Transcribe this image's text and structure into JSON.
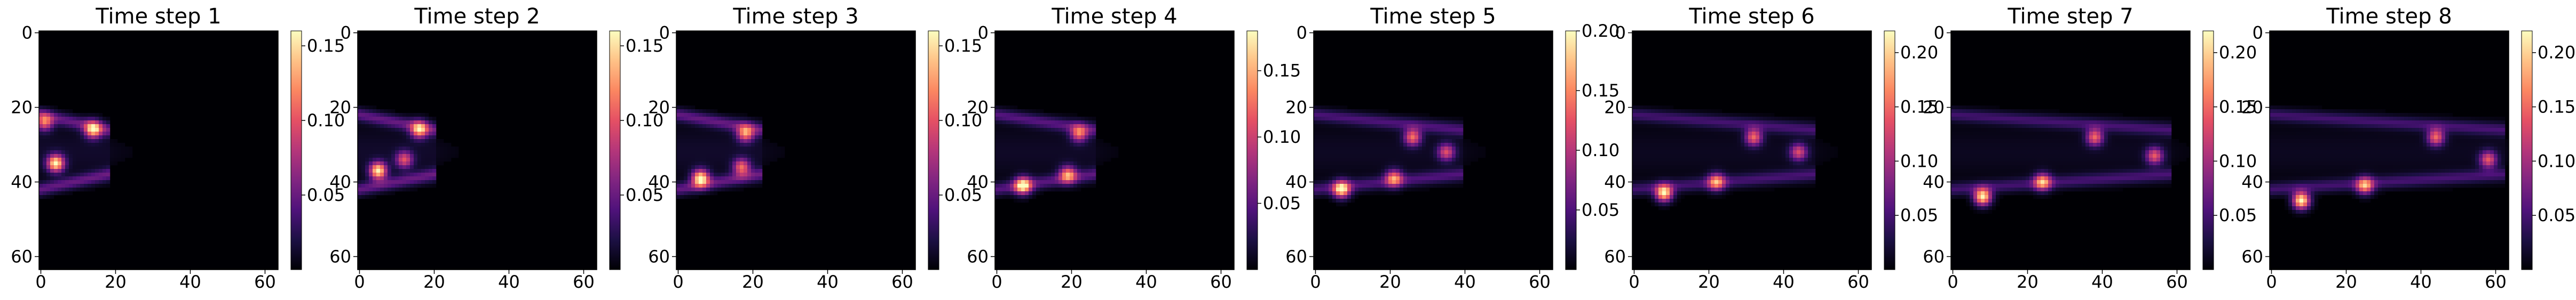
{
  "chart_data": [
    {
      "type": "heatmap",
      "title": "Time step 1",
      "grid_size": [
        64,
        64
      ],
      "xticks": [
        0,
        20,
        40,
        60
      ],
      "yticks": [
        0,
        20,
        40,
        60
      ],
      "colormap": "magma",
      "color_range": [
        0,
        0.16
      ],
      "colorbar_ticks": [
        0.05,
        0.1,
        0.15
      ],
      "hot_spots": [
        {
          "x": 14,
          "y": 26,
          "value": 0.13
        },
        {
          "x": 4,
          "y": 35,
          "value": 0.15
        },
        {
          "x": 1,
          "y": 24,
          "value": 0.1
        }
      ]
    },
    {
      "type": "heatmap",
      "title": "Time step 2",
      "grid_size": [
        64,
        64
      ],
      "xticks": [
        0,
        20,
        40,
        60
      ],
      "yticks": [
        0,
        20,
        40,
        60
      ],
      "colormap": "magma",
      "color_range": [
        0,
        0.16
      ],
      "colorbar_ticks": [
        0.05,
        0.1,
        0.15
      ],
      "hot_spots": [
        {
          "x": 16,
          "y": 26,
          "value": 0.12
        },
        {
          "x": 5,
          "y": 37,
          "value": 0.15
        },
        {
          "x": 12,
          "y": 34,
          "value": 0.09
        }
      ]
    },
    {
      "type": "heatmap",
      "title": "Time step 3",
      "grid_size": [
        64,
        64
      ],
      "xticks": [
        0,
        20,
        40,
        60
      ],
      "yticks": [
        0,
        20,
        40,
        60
      ],
      "colormap": "magma",
      "color_range": [
        0,
        0.16
      ],
      "colorbar_ticks": [
        0.05,
        0.1,
        0.15
      ],
      "hot_spots": [
        {
          "x": 18,
          "y": 27,
          "value": 0.11
        },
        {
          "x": 6,
          "y": 39,
          "value": 0.15
        },
        {
          "x": 17,
          "y": 36,
          "value": 0.1
        }
      ]
    },
    {
      "type": "heatmap",
      "title": "Time step 4",
      "grid_size": [
        64,
        64
      ],
      "xticks": [
        0,
        20,
        40,
        60
      ],
      "yticks": [
        0,
        20,
        40,
        60
      ],
      "colormap": "magma",
      "color_range": [
        0,
        0.18
      ],
      "colorbar_ticks": [
        0.05,
        0.1,
        0.15
      ],
      "hot_spots": [
        {
          "x": 22,
          "y": 27,
          "value": 0.11
        },
        {
          "x": 7,
          "y": 41,
          "value": 0.16
        },
        {
          "x": 19,
          "y": 38,
          "value": 0.12
        }
      ]
    },
    {
      "type": "heatmap",
      "title": "Time step 5",
      "grid_size": [
        64,
        64
      ],
      "xticks": [
        0,
        20,
        40,
        60
      ],
      "yticks": [
        0,
        20,
        40,
        60
      ],
      "colormap": "magma",
      "color_range": [
        0,
        0.2
      ],
      "colorbar_ticks": [
        0.05,
        0.1,
        0.15,
        0.2
      ],
      "hot_spots": [
        {
          "x": 26,
          "y": 28,
          "value": 0.13
        },
        {
          "x": 7,
          "y": 42,
          "value": 0.18
        },
        {
          "x": 21,
          "y": 39,
          "value": 0.13
        },
        {
          "x": 35,
          "y": 32,
          "value": 0.11
        }
      ]
    },
    {
      "type": "heatmap",
      "title": "Time step 6",
      "grid_size": [
        64,
        64
      ],
      "xticks": [
        0,
        20,
        40,
        60
      ],
      "yticks": [
        0,
        20,
        40,
        60
      ],
      "colormap": "magma",
      "color_range": [
        0,
        0.22
      ],
      "colorbar_ticks": [
        0.05,
        0.1,
        0.15,
        0.2
      ],
      "hot_spots": [
        {
          "x": 32,
          "y": 28,
          "value": 0.14
        },
        {
          "x": 8,
          "y": 43,
          "value": 0.2
        },
        {
          "x": 22,
          "y": 40,
          "value": 0.15
        },
        {
          "x": 44,
          "y": 32,
          "value": 0.12
        }
      ]
    },
    {
      "type": "heatmap",
      "title": "Time step 7",
      "grid_size": [
        64,
        64
      ],
      "xticks": [
        0,
        20,
        40,
        60
      ],
      "yticks": [
        0,
        20,
        40,
        60
      ],
      "colormap": "magma",
      "color_range": [
        0,
        0.22
      ],
      "colorbar_ticks": [
        0.05,
        0.1,
        0.15,
        0.2
      ],
      "hot_spots": [
        {
          "x": 38,
          "y": 28,
          "value": 0.14
        },
        {
          "x": 8,
          "y": 44,
          "value": 0.21
        },
        {
          "x": 24,
          "y": 40,
          "value": 0.16
        },
        {
          "x": 54,
          "y": 33,
          "value": 0.13
        }
      ]
    },
    {
      "type": "heatmap",
      "title": "Time step 8",
      "grid_size": [
        64,
        64
      ],
      "xticks": [
        0,
        20,
        40,
        60
      ],
      "yticks": [
        0,
        20,
        40,
        60
      ],
      "colormap": "magma",
      "color_range": [
        0,
        0.22
      ],
      "colorbar_ticks": [
        0.05,
        0.1,
        0.15,
        0.2
      ],
      "hot_spots": [
        {
          "x": 44,
          "y": 28,
          "value": 0.14
        },
        {
          "x": 8,
          "y": 45,
          "value": 0.22
        },
        {
          "x": 25,
          "y": 41,
          "value": 0.16
        },
        {
          "x": 58,
          "y": 34,
          "value": 0.13
        }
      ]
    }
  ]
}
